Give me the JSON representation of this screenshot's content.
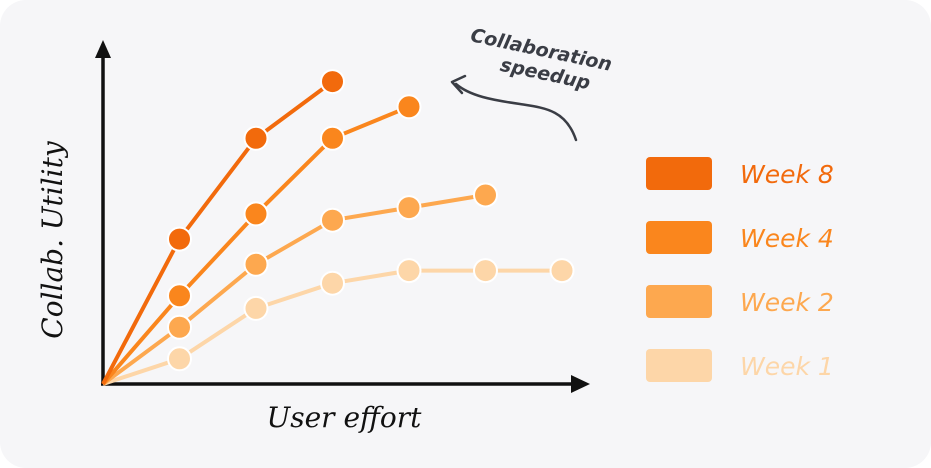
{
  "chart_data": {
    "type": "line",
    "xlabel": "User effort",
    "ylabel": "Collab. Utility",
    "xlim": [
      0,
      6
    ],
    "ylim": [
      0,
      4.5
    ],
    "grid": false,
    "legend_position": "right",
    "annotation": {
      "line1": "Collaboration",
      "line2": "speedup"
    },
    "series": [
      {
        "name": "Week 8",
        "color": "#f26a0c",
        "x": [
          0,
          1,
          2,
          3
        ],
        "y": [
          0,
          2.3,
          3.9,
          4.8
        ]
      },
      {
        "name": "Week 4",
        "color": "#fa861d",
        "x": [
          0,
          1,
          2,
          3,
          4
        ],
        "y": [
          0,
          1.4,
          2.7,
          3.9,
          4.4
        ]
      },
      {
        "name": "Week 2",
        "color": "#fda84f",
        "x": [
          0,
          1,
          2,
          3,
          4,
          5
        ],
        "y": [
          0,
          0.9,
          1.9,
          2.6,
          2.8,
          3.0
        ]
      },
      {
        "name": "Week 1",
        "color": "#fdd6a8",
        "x": [
          0,
          1,
          2,
          3,
          4,
          5,
          6
        ],
        "y": [
          0,
          0.4,
          1.2,
          1.6,
          1.8,
          1.8,
          1.8
        ]
      }
    ]
  }
}
